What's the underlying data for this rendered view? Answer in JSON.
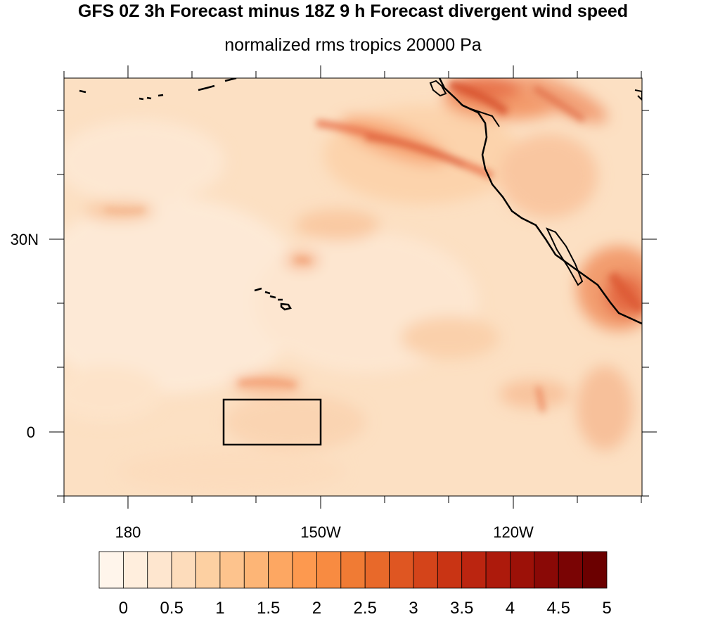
{
  "header": {
    "title": "GFS 0Z 3h Forecast minus 18Z 9 h Forecast divergent wind speed",
    "subtitle": "normalized rms tropics 20000 Pa"
  },
  "map": {
    "lon_labels": [
      "180",
      "150W",
      "120W"
    ],
    "lat_labels": [
      "30N",
      "0"
    ],
    "colors": {
      "coastline": "#000000",
      "box": "#000000"
    }
  },
  "colorbar": {
    "labels": [
      "0",
      "0.5",
      "1",
      "1.5",
      "2",
      "2.5",
      "3",
      "3.5",
      "4",
      "4.5",
      "5"
    ],
    "colors": [
      "#fff5eb",
      "#ffeedd",
      "#fee6cf",
      "#fddcbb",
      "#fdd0a2",
      "#fdc38d",
      "#fdb576",
      "#fda762",
      "#fd994f",
      "#f88b41",
      "#f07b34",
      "#e8692a",
      "#df5622",
      "#d4441a",
      "#c93414",
      "#bb2510",
      "#ad1a0c",
      "#9c1108",
      "#8a0906",
      "#7a0404",
      "#6b0000"
    ]
  }
}
